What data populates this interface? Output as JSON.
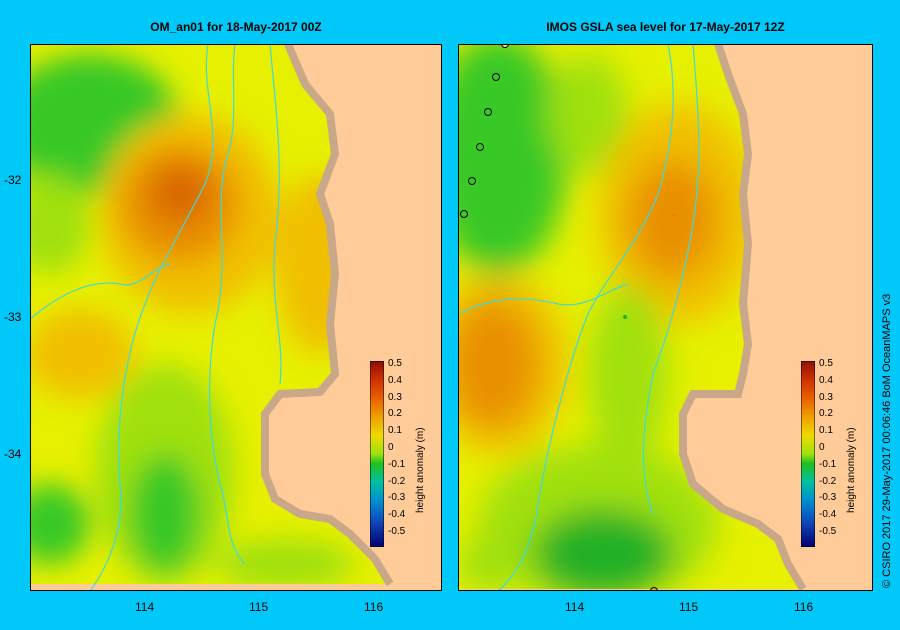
{
  "panels": {
    "left": {
      "title": "OM_an01  for 18-May-2017 00Z"
    },
    "right": {
      "title": "IMOS  GSLA sea level   for 17-May-2017 12Z"
    }
  },
  "axes": {
    "lat_labels": [
      "-32",
      "-33",
      "-34"
    ],
    "lon_labels": [
      "114",
      "115",
      "116"
    ]
  },
  "colorbar": {
    "title": "height anomaly (m)",
    "ticks": [
      "0.5",
      "0.4",
      "0.3",
      "0.2",
      "0.1",
      "0",
      "-0.1",
      "-0.2",
      "-0.3",
      "-0.4",
      "-0.5"
    ]
  },
  "credit": "© CSIRO 2017    29-May-2017 00:06:46 BoM OceanMAPS v3",
  "colors": {
    "background": "#00c8f8",
    "land": "#ffcc99",
    "coast": "#c8a888",
    "bathymetry": "#40d8e0"
  }
}
